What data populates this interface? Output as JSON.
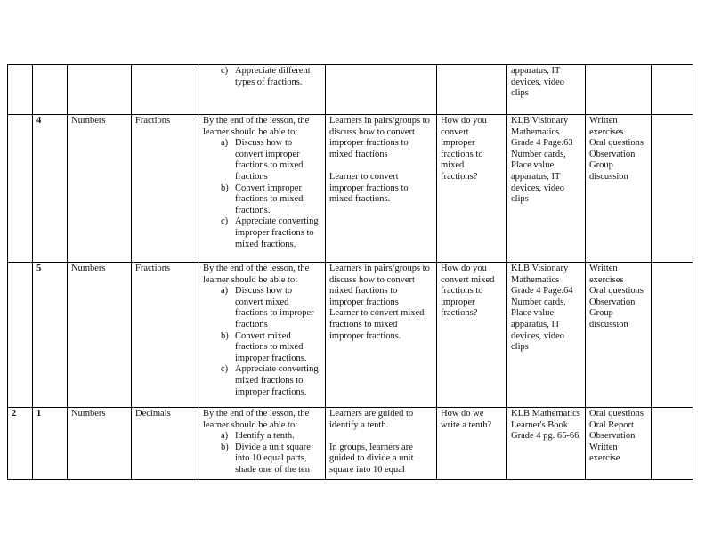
{
  "rows": [
    {
      "week": "",
      "lesson": "",
      "strand": "",
      "sub_strand": "",
      "objectives": {
        "intro": "",
        "items": [
          {
            "marker": "c)",
            "text": "Appreciate different types of fractions."
          }
        ]
      },
      "experiences": [],
      "inquiry": "",
      "resources": "apparatus, IT devices, video clips",
      "assessment": [],
      "remarks": ""
    },
    {
      "week": "",
      "lesson": "4",
      "strand": "Numbers",
      "sub_strand": "Fractions",
      "objectives": {
        "intro": "By the end of the lesson, the learner should be able to:",
        "items": [
          {
            "marker": "a)",
            "text": "Discuss how to convert improper fractions to mixed fractions"
          },
          {
            "marker": "b)",
            "text": "Convert improper fractions to mixed fractions."
          },
          {
            "marker": "c)",
            "text": "Appreciate converting improper fractions to mixed fractions."
          }
        ]
      },
      "experiences": [
        "Learners in pairs/groups to discuss how to convert improper fractions to mixed fractions",
        "",
        "Learner to convert improper fractions to mixed fractions."
      ],
      "inquiry": "How do you convert improper fractions to mixed fractions?",
      "resources": "KLB Visionary Mathematics Grade 4 Page.63 Number cards, Place value apparatus, IT devices, video clips",
      "assessment": [
        "Written exercises",
        "Oral questions",
        "Observation",
        "Group discussion"
      ],
      "remarks": ""
    },
    {
      "week": "",
      "lesson": "5",
      "strand": "Numbers",
      "sub_strand": "Fractions",
      "objectives": {
        "intro": "By the end of the lesson, the learner should be able to:",
        "items": [
          {
            "marker": "a)",
            "text": "Discuss how to convert mixed fractions to improper fractions"
          },
          {
            "marker": "b)",
            "text": "Convert mixed fractions to mixed improper fractions."
          },
          {
            "marker": "c)",
            "text": "Appreciate converting mixed fractions to improper fractions."
          }
        ]
      },
      "experiences": [
        "Learners in pairs/groups to discuss how to convert mixed fractions to improper fractions",
        "Learner to convert mixed fractions to mixed improper fractions."
      ],
      "inquiry": "How do you convert mixed fractions to improper fractions?",
      "resources": "KLB Visionary Mathematics Grade 4 Page.64 Number cards, Place value apparatus, IT devices, video clips",
      "assessment": [
        "Written exercises",
        "Oral questions",
        "Observation",
        "Group discussion"
      ],
      "remarks": ""
    },
    {
      "week": "2",
      "lesson": "1",
      "strand": "Numbers",
      "sub_strand": "Decimals",
      "objectives": {
        "intro": "By the end of the lesson, the learner should be able to:",
        "items": [
          {
            "marker": "a)",
            "text": "Identify a tenth."
          },
          {
            "marker": "b)",
            "text": "Divide a unit square into 10 equal parts, shade one of the ten"
          }
        ]
      },
      "experiences": [
        "Learners are guided to identify a tenth.",
        "",
        "In groups, learners are guided to divide a unit square into 10 equal"
      ],
      "inquiry": "How do we write a tenth?",
      "resources": "KLB Mathematics Learner's Book Grade 4 pg. 65-66",
      "assessment": [
        "Oral questions",
        "Oral Report",
        "Observation",
        "Written exercise"
      ],
      "remarks": ""
    }
  ]
}
